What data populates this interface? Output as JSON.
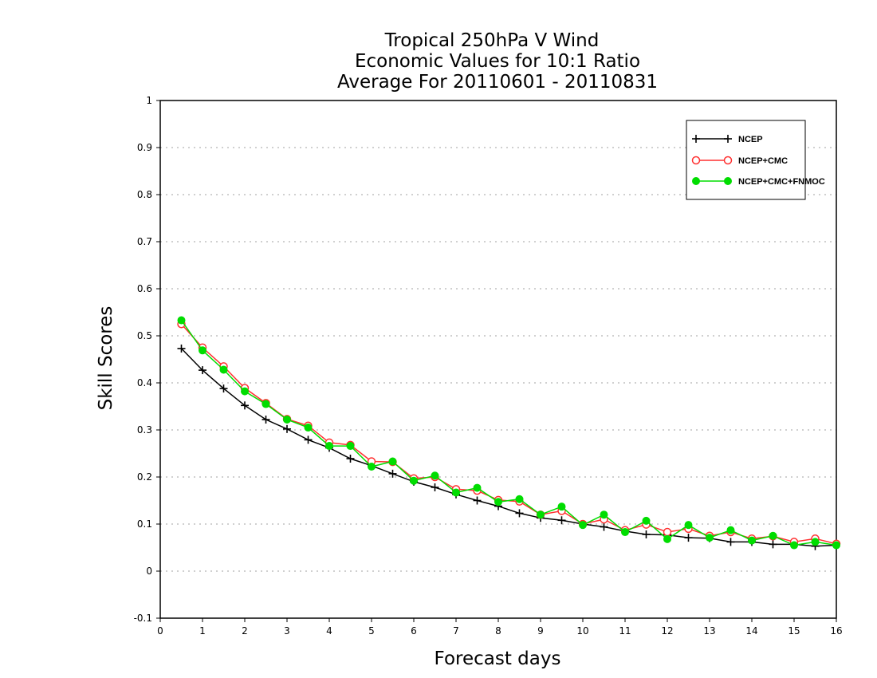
{
  "chart_data": {
    "type": "line",
    "title_lines": [
      "Tropical 250hPa V Wind",
      "Economic Values for 10:1 Ratio",
      "Average For 20110601 - 20110831"
    ],
    "xlabel": "Forecast days",
    "ylabel": "Skill Scores",
    "xlim": [
      0,
      16
    ],
    "ylim": [
      -0.1,
      1
    ],
    "x_ticks": [
      0,
      1,
      2,
      3,
      4,
      5,
      6,
      7,
      8,
      9,
      10,
      11,
      12,
      13,
      14,
      15,
      16
    ],
    "y_ticks": [
      -0.1,
      0,
      0.1,
      0.2,
      0.3,
      0.4,
      0.5,
      0.6,
      0.7,
      0.8,
      0.9,
      1
    ],
    "y_tick_labels": [
      "-0.1",
      "0",
      "0.1",
      "0.2",
      "0.3",
      "0.4",
      "0.5",
      "0.6",
      "0.7",
      "0.8",
      "0.9",
      "1"
    ],
    "grid": "horizontal-dotted",
    "legend_position": "top-right",
    "x": [
      0.5,
      1,
      1.5,
      2,
      2.5,
      3,
      3.5,
      4,
      4.5,
      5,
      5.5,
      6,
      6.5,
      7,
      7.5,
      8,
      8.5,
      9,
      9.5,
      10,
      10.5,
      11,
      11.5,
      12,
      12.5,
      13,
      13.5,
      14,
      14.5,
      15,
      15.5,
      16
    ],
    "series": [
      {
        "name": "NCEP",
        "color": "#000000",
        "marker": "plus",
        "values": [
          0.473,
          0.427,
          0.388,
          0.352,
          0.322,
          0.302,
          0.279,
          0.262,
          0.239,
          0.224,
          0.207,
          0.19,
          0.178,
          0.163,
          0.15,
          0.138,
          0.123,
          0.113,
          0.108,
          0.1,
          0.094,
          0.085,
          0.078,
          0.077,
          0.071,
          0.07,
          0.062,
          0.062,
          0.057,
          0.057,
          0.053,
          0.055
        ]
      },
      {
        "name": "NCEP+CMC",
        "color": "#ff3030",
        "marker": "open-circle",
        "values": [
          0.525,
          0.475,
          0.435,
          0.389,
          0.357,
          0.323,
          0.309,
          0.273,
          0.268,
          0.233,
          0.232,
          0.197,
          0.2,
          0.174,
          0.171,
          0.151,
          0.148,
          0.12,
          0.128,
          0.1,
          0.11,
          0.087,
          0.099,
          0.083,
          0.09,
          0.075,
          0.083,
          0.069,
          0.074,
          0.062,
          0.069,
          0.058
        ]
      },
      {
        "name": "NCEP+CMC+FNMOC",
        "color": "#00dd00",
        "marker": "filled-circle",
        "values": [
          0.533,
          0.469,
          0.428,
          0.382,
          0.355,
          0.322,
          0.305,
          0.266,
          0.266,
          0.222,
          0.233,
          0.192,
          0.203,
          0.167,
          0.177,
          0.147,
          0.153,
          0.12,
          0.137,
          0.098,
          0.12,
          0.083,
          0.107,
          0.068,
          0.098,
          0.071,
          0.087,
          0.065,
          0.075,
          0.055,
          0.062,
          0.055
        ]
      }
    ]
  }
}
